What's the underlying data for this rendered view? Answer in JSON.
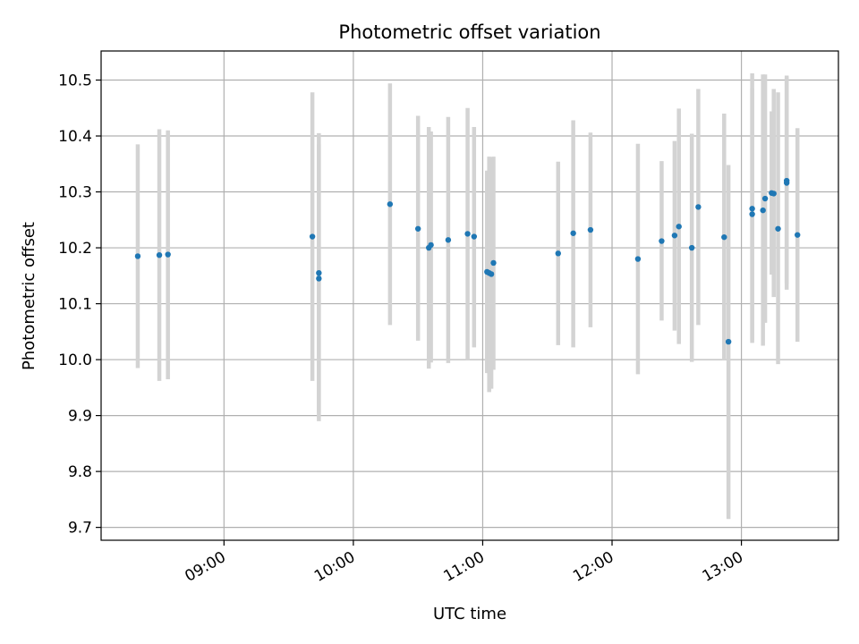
{
  "chart_data": {
    "type": "scatter",
    "title": "Photometric offset variation",
    "xlabel": "UTC time",
    "ylabel": "Photometric offset",
    "x_ticks": [
      "09:00",
      "10:00",
      "11:00",
      "12:00",
      "13:00"
    ],
    "y_ticks": [
      "9.7",
      "9.8",
      "9.9",
      "10.0",
      "10.1",
      "10.2",
      "10.3",
      "10.4",
      "10.5"
    ],
    "xlim": [
      "08:03",
      "13:45"
    ],
    "ylim": [
      9.677,
      10.552
    ],
    "grid": true,
    "colors": {
      "points": "#1f77b4",
      "errorbars": "#d3d3d3",
      "grid": "#b0b0b0"
    },
    "points": [
      {
        "x": "08:20",
        "y": 10.185,
        "lo": 9.985,
        "hi": 10.385
      },
      {
        "x": "08:30",
        "y": 10.187,
        "lo": 9.962,
        "hi": 10.412
      },
      {
        "x": "08:34",
        "y": 10.188,
        "lo": 9.965,
        "hi": 10.41
      },
      {
        "x": "09:41",
        "y": 10.22,
        "lo": 9.962,
        "hi": 10.478
      },
      {
        "x": "09:44",
        "y": 10.155,
        "lo": 9.89,
        "hi": 10.405
      },
      {
        "x": "09:44",
        "y": 10.145,
        "lo": 9.905,
        "hi": 10.385
      },
      {
        "x": "10:17",
        "y": 10.278,
        "lo": 10.062,
        "hi": 10.494
      },
      {
        "x": "10:30",
        "y": 10.234,
        "lo": 10.034,
        "hi": 10.436
      },
      {
        "x": "10:35",
        "y": 10.2,
        "lo": 9.984,
        "hi": 10.416
      },
      {
        "x": "10:36",
        "y": 10.205,
        "lo": 9.995,
        "hi": 10.408
      },
      {
        "x": "10:44",
        "y": 10.214,
        "lo": 9.994,
        "hi": 10.434
      },
      {
        "x": "10:53",
        "y": 10.225,
        "lo": 10.0,
        "hi": 10.45
      },
      {
        "x": "10:56",
        "y": 10.22,
        "lo": 10.022,
        "hi": 10.416
      },
      {
        "x": "11:02",
        "y": 10.157,
        "lo": 9.976,
        "hi": 10.338
      },
      {
        "x": "11:03",
        "y": 10.155,
        "lo": 9.942,
        "hi": 10.363
      },
      {
        "x": "11:04",
        "y": 10.153,
        "lo": 9.948,
        "hi": 10.362
      },
      {
        "x": "11:05",
        "y": 10.173,
        "lo": 9.982,
        "hi": 10.363
      },
      {
        "x": "11:35",
        "y": 10.19,
        "lo": 10.026,
        "hi": 10.354
      },
      {
        "x": "11:42",
        "y": 10.226,
        "lo": 10.022,
        "hi": 10.428
      },
      {
        "x": "11:50",
        "y": 10.232,
        "lo": 10.058,
        "hi": 10.406
      },
      {
        "x": "12:12",
        "y": 10.18,
        "lo": 9.974,
        "hi": 10.386
      },
      {
        "x": "12:23",
        "y": 10.212,
        "lo": 10.07,
        "hi": 10.355
      },
      {
        "x": "12:29",
        "y": 10.222,
        "lo": 10.052,
        "hi": 10.391
      },
      {
        "x": "12:31",
        "y": 10.238,
        "lo": 10.028,
        "hi": 10.449
      },
      {
        "x": "12:37",
        "y": 10.2,
        "lo": 9.996,
        "hi": 10.404
      },
      {
        "x": "12:40",
        "y": 10.273,
        "lo": 10.062,
        "hi": 10.484
      },
      {
        "x": "12:52",
        "y": 10.219,
        "lo": 10.0,
        "hi": 10.44
      },
      {
        "x": "12:54",
        "y": 10.032,
        "lo": 9.715,
        "hi": 10.348
      },
      {
        "x": "13:05",
        "y": 10.27,
        "lo": 10.03,
        "hi": 10.512
      },
      {
        "x": "13:05",
        "y": 10.26,
        "lo": 10.035,
        "hi": 10.485
      },
      {
        "x": "13:10",
        "y": 10.267,
        "lo": 10.025,
        "hi": 10.51
      },
      {
        "x": "13:11",
        "y": 10.288,
        "lo": 10.066,
        "hi": 10.51
      },
      {
        "x": "13:14",
        "y": 10.298,
        "lo": 10.152,
        "hi": 10.444
      },
      {
        "x": "13:15",
        "y": 10.297,
        "lo": 10.112,
        "hi": 10.484
      },
      {
        "x": "13:17",
        "y": 10.234,
        "lo": 9.992,
        "hi": 10.478
      },
      {
        "x": "13:21",
        "y": 10.32,
        "lo": 10.136,
        "hi": 10.505
      },
      {
        "x": "13:21",
        "y": 10.316,
        "lo": 10.125,
        "hi": 10.508
      },
      {
        "x": "13:26",
        "y": 10.223,
        "lo": 10.032,
        "hi": 10.414
      }
    ]
  }
}
